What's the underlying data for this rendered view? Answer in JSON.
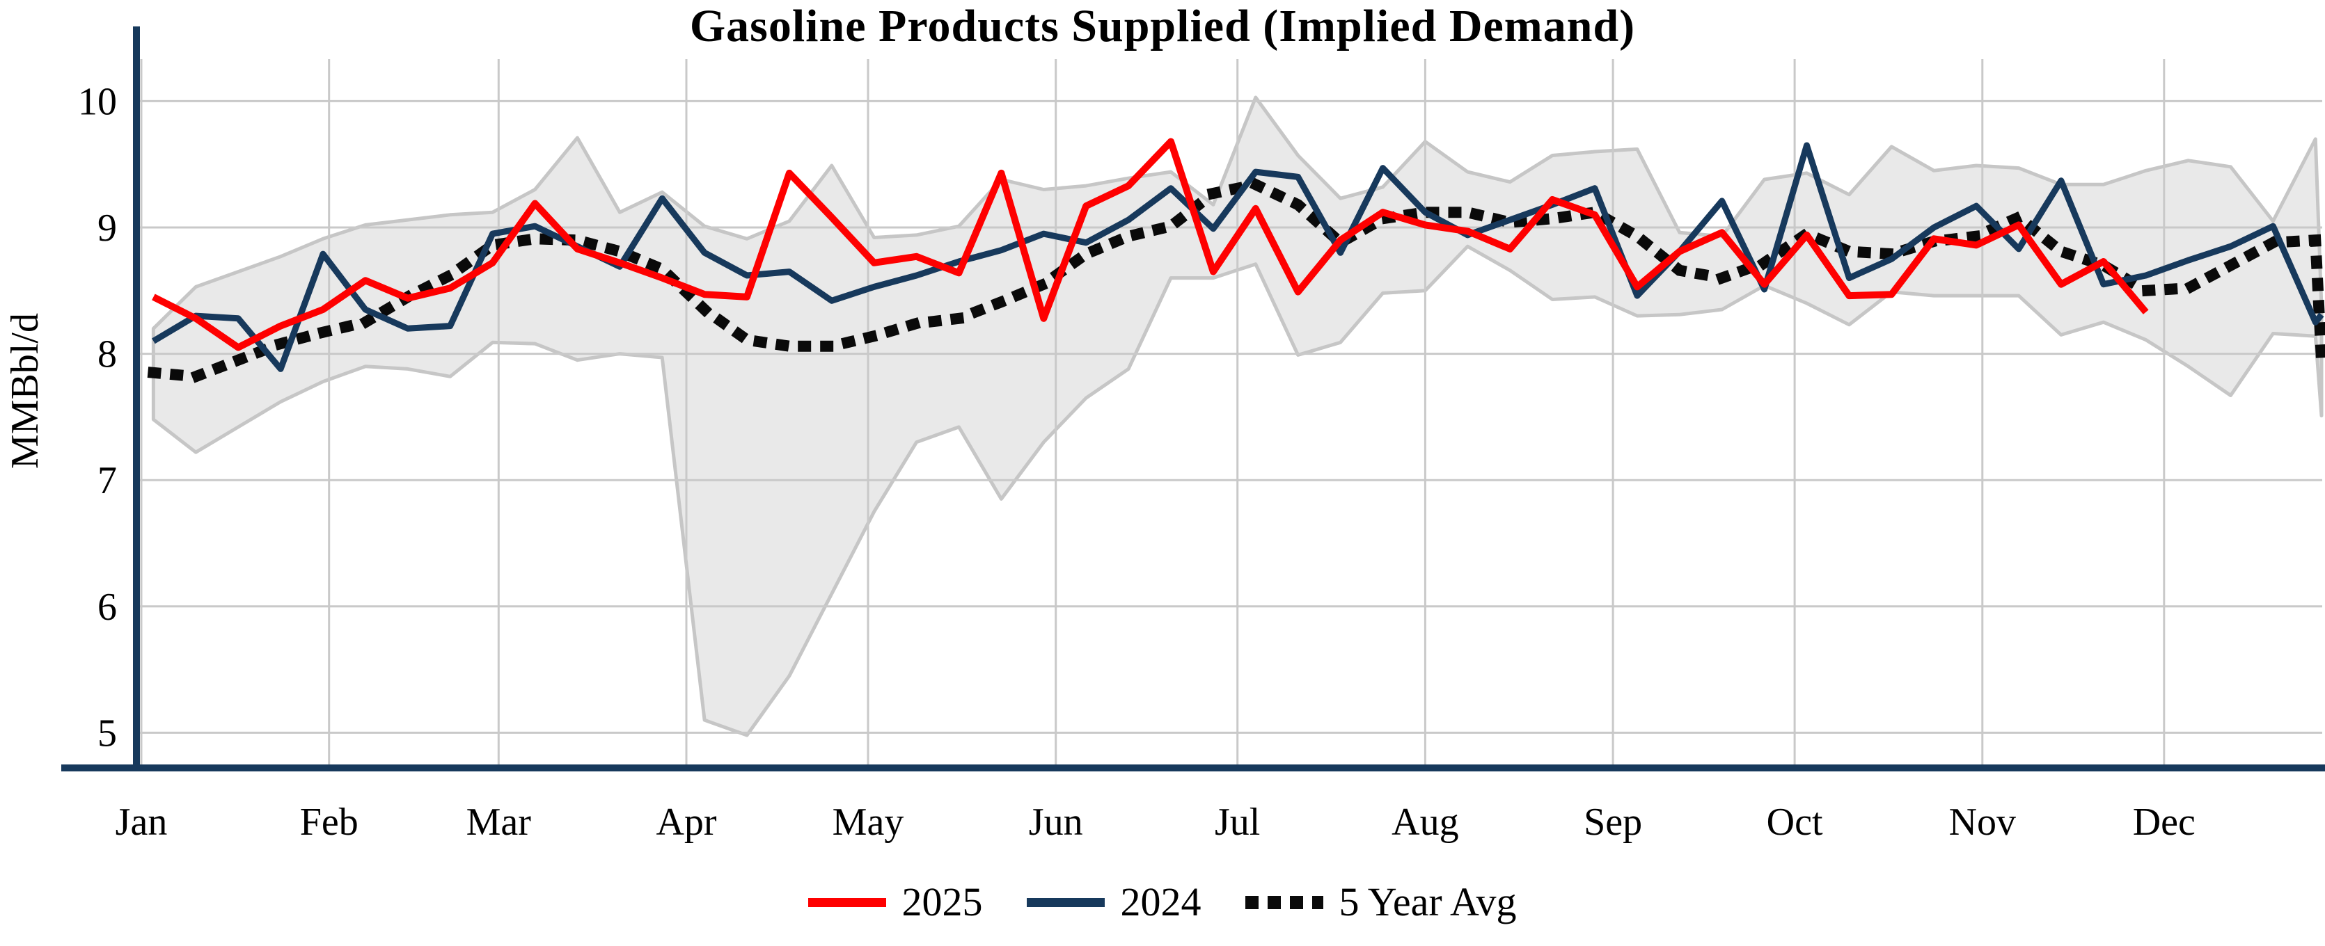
{
  "chart_data": {
    "type": "line",
    "title": "Gasoline Products Supplied (Implied Demand)",
    "ylabel": "MMBbl/d",
    "xlabel": "",
    "grid": true,
    "legend_position": "bottom-center",
    "ylim": [
      4.65,
      10.35
    ],
    "yticks": [
      5,
      6,
      7,
      8,
      9,
      10
    ],
    "xticklabels": [
      "Jan",
      "Feb",
      "Mar",
      "Apr",
      "May",
      "Jun",
      "Jul",
      "Aug",
      "Sep",
      "Oct",
      "Nov",
      "Dec"
    ],
    "month_start_days": [
      0,
      31,
      59,
      90,
      120,
      151,
      181,
      212,
      243,
      273,
      304,
      334
    ],
    "series": [
      {
        "name": "2025",
        "color": "#FE0000",
        "style": "solid",
        "days": [
          2,
          9,
          16,
          23,
          30,
          37,
          44,
          51,
          58,
          65,
          72,
          79,
          86,
          93,
          100,
          107,
          114,
          121,
          128,
          135,
          142,
          149,
          156,
          163,
          170,
          177,
          184,
          191,
          198,
          205,
          212,
          219,
          226,
          233,
          240,
          247,
          254,
          261,
          268,
          275,
          282,
          289,
          296,
          303,
          310,
          317,
          324,
          331
        ],
        "values": [
          8.45,
          8.28,
          8.05,
          8.22,
          8.35,
          8.58,
          8.44,
          8.52,
          8.72,
          9.19,
          8.83,
          8.72,
          8.6,
          8.47,
          8.45,
          9.43,
          9.08,
          8.72,
          8.77,
          8.64,
          9.43,
          8.28,
          9.17,
          9.33,
          9.68,
          8.65,
          9.15,
          8.49,
          8.9,
          9.12,
          9.02,
          8.97,
          8.83,
          9.22,
          9.1,
          8.53,
          8.81,
          8.96,
          8.55,
          8.94,
          8.46,
          8.47,
          8.91,
          8.86,
          9.02,
          8.55,
          8.73,
          8.33
        ]
      },
      {
        "name": "2024",
        "color": "#17395C",
        "style": "solid",
        "days": [
          2,
          9,
          16,
          23,
          30,
          37,
          44,
          51,
          58,
          65,
          72,
          79,
          86,
          93,
          100,
          107,
          114,
          121,
          128,
          135,
          142,
          149,
          156,
          163,
          170,
          177,
          184,
          191,
          198,
          205,
          212,
          219,
          226,
          233,
          240,
          247,
          254,
          261,
          268,
          275,
          282,
          289,
          296,
          303,
          310,
          317,
          324,
          331,
          338,
          345,
          352,
          359,
          360
        ],
        "values": [
          8.1,
          8.3,
          8.28,
          7.88,
          8.79,
          8.35,
          8.2,
          8.22,
          8.95,
          9.01,
          8.85,
          8.69,
          9.23,
          8.8,
          8.62,
          8.65,
          8.42,
          8.53,
          8.62,
          8.73,
          8.82,
          8.95,
          8.88,
          9.06,
          9.31,
          8.99,
          9.44,
          9.4,
          8.8,
          9.47,
          9.12,
          8.94,
          9.06,
          9.18,
          9.31,
          8.46,
          8.81,
          9.21,
          8.51,
          9.65,
          8.6,
          8.75,
          9.0,
          9.17,
          8.83,
          9.37,
          8.55,
          8.62,
          8.74,
          8.85,
          9.01,
          8.25,
          8.31
        ]
      },
      {
        "name": "5 Year Avg",
        "color": "#0A0A0A",
        "style": "dotted",
        "days": [
          2,
          9,
          16,
          23,
          30,
          37,
          44,
          51,
          58,
          65,
          72,
          79,
          86,
          93,
          100,
          107,
          114,
          121,
          128,
          135,
          142,
          149,
          156,
          163,
          170,
          177,
          184,
          191,
          198,
          205,
          212,
          219,
          226,
          233,
          240,
          247,
          254,
          261,
          268,
          275,
          282,
          289,
          296,
          303,
          310,
          317,
          324,
          331,
          338,
          345,
          352,
          359,
          360
        ],
        "values": [
          7.85,
          7.82,
          7.95,
          8.08,
          8.17,
          8.25,
          8.45,
          8.62,
          8.86,
          8.91,
          8.9,
          8.81,
          8.67,
          8.35,
          8.11,
          8.06,
          8.06,
          8.14,
          8.24,
          8.28,
          8.41,
          8.55,
          8.79,
          8.93,
          9.01,
          9.27,
          9.34,
          9.18,
          8.88,
          9.07,
          9.12,
          9.12,
          9.04,
          9.07,
          9.12,
          8.93,
          8.66,
          8.6,
          8.72,
          8.95,
          8.81,
          8.79,
          8.89,
          8.93,
          9.08,
          8.81,
          8.7,
          8.5,
          8.52,
          8.7,
          8.88,
          8.9,
          7.95
        ]
      }
    ],
    "band": {
      "name": "5 year range",
      "fill": "#E9E9E9",
      "edge": "#C6C6C6",
      "days": [
        2,
        9,
        16,
        23,
        30,
        37,
        44,
        51,
        58,
        65,
        72,
        79,
        86,
        93,
        100,
        107,
        114,
        121,
        128,
        135,
        142,
        149,
        156,
        163,
        170,
        177,
        184,
        191,
        198,
        205,
        212,
        219,
        226,
        233,
        240,
        247,
        254,
        261,
        268,
        275,
        282,
        289,
        296,
        303,
        310,
        317,
        324,
        331,
        338,
        345,
        352,
        359,
        360
      ],
      "upper": [
        8.2,
        8.53,
        8.65,
        8.77,
        8.91,
        9.02,
        9.06,
        9.1,
        9.12,
        9.3,
        9.71,
        9.12,
        9.28,
        9.01,
        8.91,
        9.05,
        9.49,
        8.92,
        8.94,
        9.01,
        9.38,
        9.3,
        9.33,
        9.39,
        9.44,
        9.18,
        10.03,
        9.57,
        9.23,
        9.32,
        9.68,
        9.44,
        9.36,
        9.57,
        9.6,
        9.62,
        8.96,
        8.93,
        9.38,
        9.43,
        9.26,
        9.64,
        9.45,
        9.49,
        9.47,
        9.34,
        9.34,
        9.45,
        9.53,
        9.48,
        9.05,
        9.7,
        8.37
      ],
      "lower": [
        7.48,
        7.22,
        7.42,
        7.62,
        7.78,
        7.9,
        7.88,
        7.82,
        8.09,
        8.08,
        7.95,
        8.0,
        7.97,
        5.1,
        4.98,
        5.45,
        6.1,
        6.75,
        7.3,
        7.42,
        6.85,
        7.3,
        7.65,
        7.88,
        8.6,
        8.6,
        8.71,
        7.99,
        8.09,
        8.48,
        8.5,
        8.85,
        8.66,
        8.43,
        8.45,
        8.3,
        8.31,
        8.35,
        8.54,
        8.4,
        8.23,
        8.49,
        8.46,
        8.46,
        8.46,
        8.15,
        8.25,
        8.11,
        7.9,
        7.67,
        8.16,
        8.14,
        7.51
      ]
    },
    "colors": {
      "grid": "#C9C9C9",
      "spine": "#17395C",
      "band_fill": "#E9E9E9",
      "band_edge": "#C6C6C6"
    }
  },
  "legend": {
    "items": [
      {
        "label": "2025"
      },
      {
        "label": "2024"
      },
      {
        "label": "5 Year Avg"
      }
    ]
  }
}
